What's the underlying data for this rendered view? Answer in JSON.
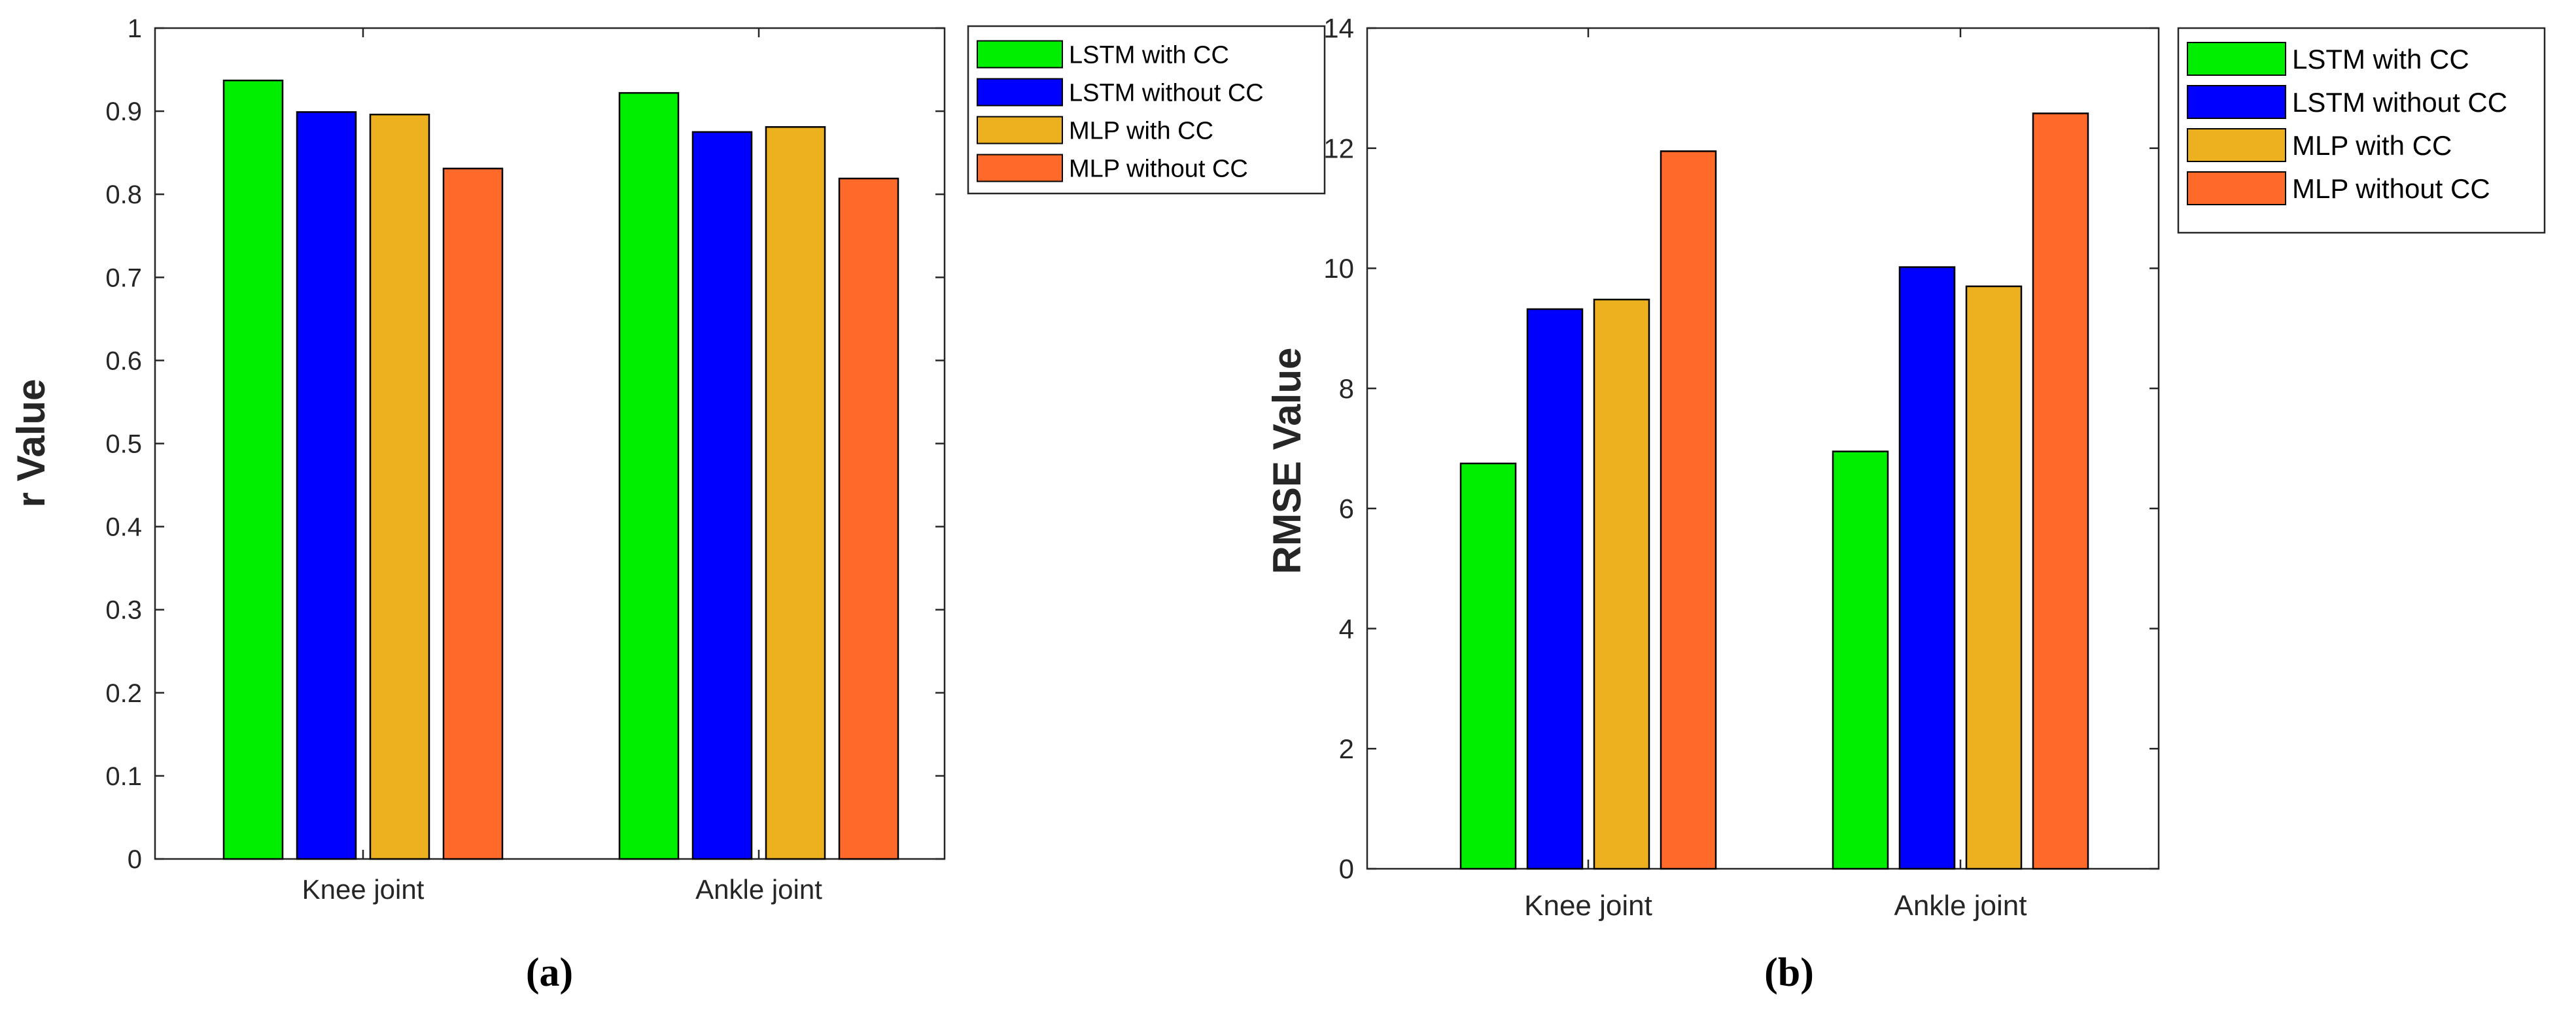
{
  "legend_entries": [
    "LSTM with CC",
    "LSTM without CC",
    "MLP with CC",
    "MLP without CC"
  ],
  "colors": {
    "lstm_with_cc": "#00ee00",
    "lstm_without_cc": "#0000ff",
    "mlp_with_cc": "#edb120",
    "mlp_without_cc": "#ff6a2a"
  },
  "chart_data": [
    {
      "type": "bar",
      "panel_label": "(a)",
      "title": "",
      "xlabel": "",
      "ylabel": "r Value",
      "categories": [
        "Knee joint",
        "Ankle joint"
      ],
      "ylim": [
        0,
        1
      ],
      "yticks": [
        "0",
        "0.1",
        "0.2",
        "0.3",
        "0.4",
        "0.5",
        "0.6",
        "0.7",
        "0.8",
        "0.9",
        "1"
      ],
      "legend_position": "outside-top-right",
      "series": [
        {
          "name": "LSTM with CC",
          "values": [
            0.937,
            0.922
          ]
        },
        {
          "name": "LSTM without CC",
          "values": [
            0.899,
            0.875
          ]
        },
        {
          "name": "MLP with CC",
          "values": [
            0.896,
            0.881
          ]
        },
        {
          "name": "MLP without CC",
          "values": [
            0.831,
            0.819
          ]
        }
      ]
    },
    {
      "type": "bar",
      "panel_label": "(b)",
      "title": "",
      "xlabel": "",
      "ylabel": "RMSE Value",
      "categories": [
        "Knee joint",
        "Ankle joint"
      ],
      "ylim": [
        0,
        14
      ],
      "yticks": [
        "0",
        "2",
        "4",
        "6",
        "8",
        "10",
        "12",
        "14"
      ],
      "legend_position": "outside-top-right",
      "series": [
        {
          "name": "LSTM with CC",
          "values": [
            6.75,
            6.95
          ]
        },
        {
          "name": "LSTM without CC",
          "values": [
            9.32,
            10.02
          ]
        },
        {
          "name": "MLP with CC",
          "values": [
            9.48,
            9.7
          ]
        },
        {
          "name": "MLP without CC",
          "values": [
            11.95,
            12.58
          ]
        }
      ]
    }
  ]
}
